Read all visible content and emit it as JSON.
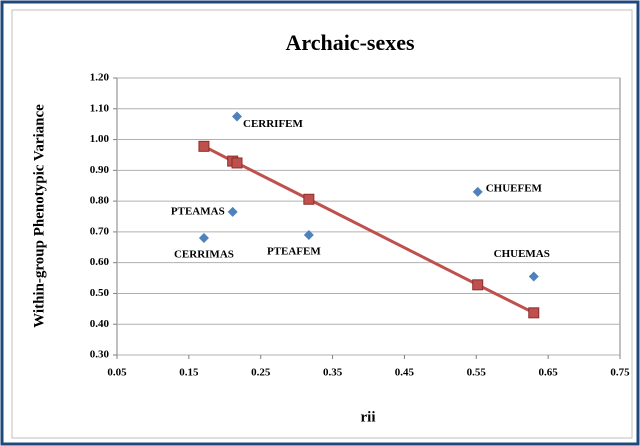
{
  "chart_data": {
    "type": "scatter",
    "title": "Archaic-sexes",
    "x_label": "rii",
    "y_label": "Within-group Phenotypic Variance",
    "series": [
      {
        "color": "#4f81bd",
        "marker": "diamond",
        "labels": [
          "CERRIFEM",
          "CHUEFEM",
          "PTEAMAS",
          "CERRIMAS",
          "PTEAFEM",
          "CHUEMAS"
        ],
        "x": [
          0.217,
          0.552,
          0.211,
          0.171,
          0.317,
          0.63
        ],
        "values": [
          1.075,
          0.83,
          0.765,
          0.68,
          0.69,
          0.555
        ]
      },
      {
        "color": "#c0504d",
        "marker": "square",
        "line": true,
        "x": [
          0.171,
          0.211,
          0.217,
          0.317,
          0.552,
          0.63
        ],
        "values": [
          0.978,
          0.93,
          0.924,
          0.806,
          0.528,
          0.437
        ]
      }
    ],
    "xlim": [
      0.05,
      0.75
    ],
    "xticks": [
      0.05,
      0.15,
      0.25,
      0.35,
      0.45,
      0.55,
      0.65,
      0.75
    ],
    "ylim": [
      0.3,
      1.2
    ],
    "yticks": [
      {
        "value": 0.3,
        "label": "0.30"
      },
      {
        "value": 0.4,
        "label": "0.40"
      },
      {
        "value": 0.5,
        "label": "0.50"
      },
      {
        "value": 0.6,
        "label": "0.60"
      },
      {
        "value": 0.7,
        "label": "0.70"
      },
      {
        "value": 0.8,
        "label": "0.80"
      },
      {
        "value": 0.9,
        "label": "0.90"
      },
      {
        "value": 1.0,
        "label": "1.00"
      },
      {
        "value": 1.1,
        "label": "1.10"
      },
      {
        "value": 1.2,
        "label": "1.20"
      }
    ],
    "grid": true
  }
}
